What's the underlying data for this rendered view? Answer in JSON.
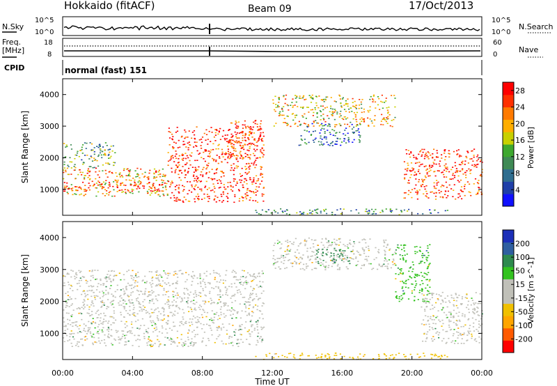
{
  "header": {
    "station": "Hokkaido (fitACF)",
    "beam": "Beam 09",
    "date": "17/Oct/2013"
  },
  "strips": {
    "nsky_label": "N.Sky",
    "nsky_scale_top": "10^5",
    "nsky_scale_bottom": "10^0",
    "nsearch_label": "N.Search",
    "nsearch_scale_top": "10^5",
    "nsearch_scale_bottom": "10^0",
    "freq_label_1": "Freq.",
    "freq_label_2": "[MHz]",
    "freq_tick_top": "18",
    "freq_tick_bottom": "8",
    "nave_label": "Nave",
    "nave_tick_top": "60",
    "nave_tick_bottom": "0",
    "cpid_label": "CPID",
    "cpid_value": "normal (fast) 151"
  },
  "colors": {
    "power_scale": [
      "#1010ff",
      "#1f3fa8",
      "#2f6d8f",
      "#3f8a55",
      "#3ea82f",
      "#c8d000",
      "#ffae00",
      "#ff7a00",
      "#ff3000",
      "#ff0000"
    ],
    "velocity_scale": [
      "#ff0000",
      "#ff5a00",
      "#ffa500",
      "#f0c000",
      "#c0c0b8",
      "#c0c0b8",
      "#33c21f",
      "#2e8a4e",
      "#2f5fa0",
      "#1c2fb8"
    ],
    "ground_scatter": "#c0c0b8",
    "nave_dotted": "#000000"
  },
  "chart_data": [
    {
      "type": "heatmap",
      "title": "",
      "xlabel": "Time UT",
      "ylabel": "Slant Range [km]",
      "xlim": [
        "00:00",
        "24:00"
      ],
      "ylim": [
        180,
        4500
      ],
      "x_ticks": [
        "00:00",
        "04:00",
        "08:00",
        "12:00",
        "16:00",
        "20:00",
        "00:00"
      ],
      "y_ticks": [
        1000,
        2000,
        3000,
        4000
      ],
      "colorbar_label": "Power [dB]",
      "colorbar_ticks": [
        4,
        8,
        12,
        16,
        20,
        24,
        28
      ],
      "colorbar_range": [
        0,
        30
      ],
      "regions": [
        {
          "t0": 0.0,
          "t1": 6.0,
          "r0": 800,
          "r1": 1700,
          "value": 20
        },
        {
          "t0": 0.0,
          "t1": 6.0,
          "r0": 950,
          "r1": 1250,
          "value": 28
        },
        {
          "t0": 0.0,
          "t1": 3.0,
          "r0": 1700,
          "r1": 2500,
          "value": 12
        },
        {
          "t0": 6.0,
          "t1": 11.5,
          "r0": 600,
          "r1": 3000,
          "value": 27
        },
        {
          "t0": 9.5,
          "t1": 11.5,
          "r0": 2000,
          "r1": 3200,
          "value": 26
        },
        {
          "t0": 12.0,
          "t1": 19.0,
          "r0": 3000,
          "r1": 4000,
          "value": 18
        },
        {
          "t0": 13.5,
          "t1": 17.0,
          "r0": 2400,
          "r1": 3100,
          "value": 6
        },
        {
          "t0": 19.5,
          "t1": 24.0,
          "r0": 700,
          "r1": 2300,
          "value": 26
        },
        {
          "t0": 11.0,
          "t1": 22.0,
          "r0": 200,
          "r1": 400,
          "value": 10
        }
      ]
    },
    {
      "type": "heatmap",
      "title": "",
      "xlabel": "Time UT",
      "ylabel": "Slant Range [km]",
      "xlim": [
        "00:00",
        "24:00"
      ],
      "ylim": [
        180,
        4500
      ],
      "x_ticks": [
        "00:00",
        "04:00",
        "08:00",
        "12:00",
        "16:00",
        "20:00",
        "00:00"
      ],
      "y_ticks": [
        1000,
        2000,
        3000,
        4000
      ],
      "colorbar_label": "Velocity [m s^-1]",
      "colorbar_ticks": [
        -200,
        -100,
        -50,
        -15,
        15,
        50,
        100,
        200
      ],
      "colorbar_range": [
        -250,
        250
      ],
      "regions": [
        {
          "t0": 0.0,
          "t1": 11.5,
          "r0": 600,
          "r1": 3000,
          "value": 0
        },
        {
          "t0": 12.0,
          "t1": 19.0,
          "r0": 3000,
          "r1": 4000,
          "value": 0
        },
        {
          "t0": 14.5,
          "t1": 16.5,
          "r0": 3200,
          "r1": 3700,
          "value": 60
        },
        {
          "t0": 19.0,
          "t1": 21.0,
          "r0": 2000,
          "r1": 3800,
          "value": 40
        },
        {
          "t0": 20.5,
          "t1": 24.0,
          "r0": 700,
          "r1": 2300,
          "value": 0
        },
        {
          "t0": 11.0,
          "t1": 22.0,
          "r0": 200,
          "r1": 400,
          "value": -30
        }
      ]
    }
  ]
}
